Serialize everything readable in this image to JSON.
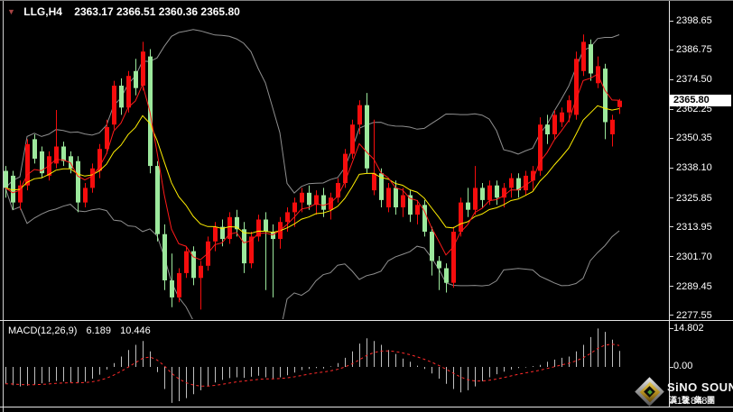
{
  "header": {
    "dropdown_icon": "▼",
    "symbol_period": "LLG,H4",
    "ohlc_text": "2363.17 2366.51 2360.36 2365.80"
  },
  "price_axis": {
    "current_price": "2365.80"
  },
  "macd_panel": {
    "indicator_name": "MACD(12,26,9)",
    "main_value": "6.189",
    "signal_value": "10.446",
    "axis_max": "14.802",
    "axis_zero": "0.00",
    "axis_min": "-13.848"
  },
  "watermark": {
    "line1": "SiNO SOUND",
    "line2": "漢聲集團"
  },
  "colors": {
    "background": "#000000",
    "bull": "#f50d0d",
    "bear": "#9ce89c",
    "band": "#8f8f8f",
    "ma_fast": "#ff1a1a",
    "ma_slow": "#ffee00",
    "macd_bar": "#bfbfbf",
    "macd_signal": "#ff2a2a",
    "axis_text": "#ffffff",
    "price_box_bg": "#ffffff",
    "title_arrow": "#a84444"
  },
  "chart_data": {
    "type": "candlestick",
    "symbol": "LLG",
    "timeframe": "H4",
    "title": "LLG,H4 2363.17 2366.51 2360.36 2365.80",
    "last_bar": {
      "open": 2363.17,
      "high": 2366.51,
      "low": 2360.36,
      "close": 2365.8
    },
    "price_ticks": [
      2398.65,
      2386.75,
      2374.5,
      2362.25,
      2350.35,
      2338.1,
      2325.85,
      2313.95,
      2301.7,
      2289.45,
      2277.55
    ],
    "price_range": [
      2277.55,
      2398.65
    ],
    "grid": false,
    "candles": [
      [
        2337,
        2339,
        2326,
        2330
      ],
      [
        2335,
        2337,
        2321,
        2324
      ],
      [
        2324,
        2333,
        2321,
        2331
      ],
      [
        2331,
        2350,
        2329,
        2348
      ],
      [
        2350,
        2352,
        2340,
        2342
      ],
      [
        2345,
        2347,
        2334,
        2336
      ],
      [
        2335,
        2345,
        2333,
        2343
      ],
      [
        2340,
        2362,
        2338,
        2347
      ],
      [
        2347,
        2349,
        2339,
        2341
      ],
      [
        2343,
        2345,
        2336,
        2338
      ],
      [
        2341,
        2343,
        2320,
        2324
      ],
      [
        2324,
        2332,
        2322,
        2330
      ],
      [
        2330,
        2340,
        2328,
        2338
      ],
      [
        2337,
        2348,
        2334,
        2346
      ],
      [
        2346,
        2358,
        2344,
        2355
      ],
      [
        2356,
        2374,
        2354,
        2372
      ],
      [
        2372,
        2375,
        2360,
        2363
      ],
      [
        2363,
        2378,
        2361,
        2376
      ],
      [
        2378,
        2383,
        2368,
        2371
      ],
      [
        2372,
        2390,
        2370,
        2386
      ],
      [
        2384,
        2387,
        2336,
        2339
      ],
      [
        2339,
        2341,
        2308,
        2311
      ],
      [
        2311,
        2315,
        2288,
        2292
      ],
      [
        2292,
        2303,
        2281,
        2285
      ],
      [
        2285,
        2297,
        2283,
        2295
      ],
      [
        2295,
        2306,
        2293,
        2304
      ],
      [
        2304,
        2306,
        2290,
        2293
      ],
      [
        2293,
        2300,
        2280,
        2298
      ],
      [
        2298,
        2310,
        2296,
        2308
      ],
      [
        2308,
        2316,
        2304,
        2314
      ],
      [
        2314,
        2317,
        2306,
        2309
      ],
      [
        2309,
        2320,
        2307,
        2318
      ],
      [
        2318,
        2321,
        2310,
        2313
      ],
      [
        2313,
        2316,
        2295,
        2299
      ],
      [
        2299,
        2312,
        2297,
        2310
      ],
      [
        2310,
        2319,
        2308,
        2317
      ],
      [
        2317,
        2320,
        2288,
        2312
      ],
      [
        2312,
        2315,
        2285,
        2309
      ],
      [
        2309,
        2318,
        2305,
        2316
      ],
      [
        2316,
        2322,
        2312,
        2320
      ],
      [
        2320,
        2326,
        2314,
        2324
      ],
      [
        2324,
        2330,
        2320,
        2328
      ],
      [
        2328,
        2331,
        2321,
        2323
      ],
      [
        2323,
        2329,
        2319,
        2327
      ],
      [
        2327,
        2330,
        2318,
        2321
      ],
      [
        2321,
        2328,
        2317,
        2326
      ],
      [
        2326,
        2334,
        2324,
        2332
      ],
      [
        2332,
        2346,
        2330,
        2344
      ],
      [
        2344,
        2358,
        2342,
        2356
      ],
      [
        2356,
        2366,
        2352,
        2364
      ],
      [
        2364,
        2369,
        2336,
        2338
      ],
      [
        2329,
        2358,
        2327,
        2336
      ],
      [
        2336,
        2338,
        2322,
        2325
      ],
      [
        2322,
        2332,
        2320,
        2330
      ],
      [
        2330,
        2333,
        2319,
        2322
      ],
      [
        2322,
        2330,
        2318,
        2327
      ],
      [
        2327,
        2329,
        2316,
        2319
      ],
      [
        2319,
        2325,
        2315,
        2323
      ],
      [
        2323,
        2325,
        2310,
        2312
      ],
      [
        2312,
        2314,
        2294,
        2300
      ],
      [
        2300,
        2302,
        2288,
        2297
      ],
      [
        2297,
        2299,
        2287,
        2291
      ],
      [
        2291,
        2314,
        2289,
        2312
      ],
      [
        2312,
        2326,
        2310,
        2324
      ],
      [
        2324,
        2330,
        2318,
        2321
      ],
      [
        2321,
        2339,
        2319,
        2330
      ],
      [
        2330,
        2332,
        2322,
        2325
      ],
      [
        2325,
        2333,
        2323,
        2331
      ],
      [
        2331,
        2333,
        2323,
        2326
      ],
      [
        2326,
        2332,
        2322,
        2330
      ],
      [
        2330,
        2336,
        2326,
        2334
      ],
      [
        2334,
        2336,
        2326,
        2329
      ],
      [
        2329,
        2337,
        2327,
        2335
      ],
      [
        2333,
        2339,
        2329,
        2337
      ],
      [
        2337,
        2359,
        2335,
        2356
      ],
      [
        2356,
        2360,
        2348,
        2352
      ],
      [
        2352,
        2362,
        2350,
        2360
      ],
      [
        2357,
        2363,
        2355,
        2361
      ],
      [
        2361,
        2368,
        2357,
        2366
      ],
      [
        2360,
        2386,
        2358,
        2383
      ],
      [
        2378,
        2393,
        2376,
        2390
      ],
      [
        2389,
        2391,
        2374,
        2377
      ],
      [
        2373,
        2384,
        2371,
        2380
      ],
      [
        2379,
        2381,
        2350,
        2357
      ],
      [
        2352,
        2360,
        2347,
        2358
      ],
      [
        2363.17,
        2366.51,
        2360.36,
        2365.8
      ]
    ],
    "overlays": {
      "bollinger_period": 20,
      "bollinger_deviation": 2,
      "ma_fast_period": 5,
      "ma_slow_period": 12
    },
    "macd": {
      "params": [
        12,
        26,
        9
      ],
      "range": [
        -13.848,
        14.802
      ],
      "main": [
        -6.5,
        -7.0,
        -7.5,
        -7.2,
        -6.8,
        -6.3,
        -5.8,
        -5.4,
        -5.6,
        -5.9,
        -6.1,
        -5.7,
        -4.5,
        -3.0,
        -1.0,
        1.5,
        4.0,
        6.5,
        8.5,
        10.0,
        6.0,
        -2.0,
        -8.5,
        -13.848,
        -13.2,
        -12.0,
        -10.5,
        -9.0,
        -7.5,
        -6.0,
        -5.0,
        -4.3,
        -4.0,
        -4.2,
        -3.8,
        -3.4,
        -4.0,
        -4.4,
        -4.0,
        -3.2,
        -2.2,
        -1.2,
        -0.8,
        -0.4,
        -0.6,
        0.2,
        1.5,
        3.5,
        6.0,
        9.0,
        11.0,
        10.0,
        8.5,
        6.5,
        5.0,
        3.2,
        2.0,
        0.5,
        -0.8,
        -2.5,
        -4.5,
        -6.5,
        -8.5,
        -9.8,
        -9.0,
        -7.5,
        -5.5,
        -4.0,
        -2.8,
        -1.8,
        -1.0,
        -0.4,
        -0.2,
        0.3,
        0.8,
        2.0,
        2.8,
        3.5,
        4.0,
        6.0,
        8.5,
        11.5,
        14.802,
        13.5,
        10.5,
        6.189
      ],
      "signal_period": 9
    }
  }
}
